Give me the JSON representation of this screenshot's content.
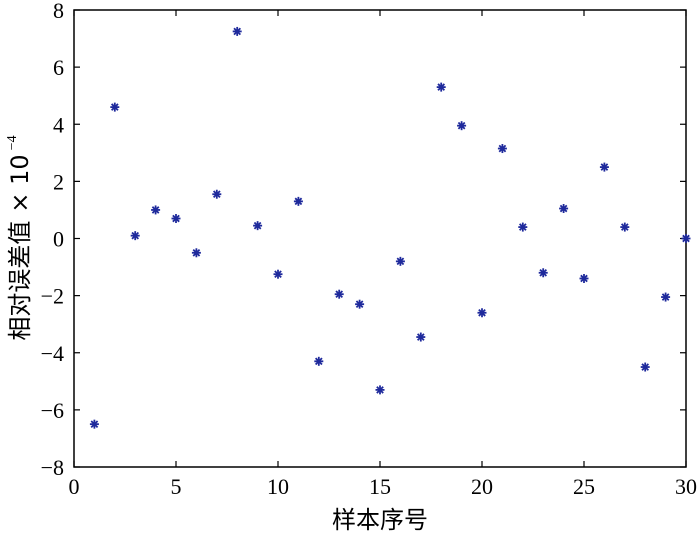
{
  "chart_data": {
    "type": "scatter",
    "title": "",
    "xlabel": "样本序号",
    "ylabel_main": "相对误差值",
    "ylabel_factor": "× 10",
    "ylabel_exponent": "−4",
    "xlim": [
      0,
      30
    ],
    "ylim": [
      -8,
      8
    ],
    "xticks": [
      0,
      5,
      10,
      15,
      20,
      25,
      30
    ],
    "yticks": [
      -8,
      -6,
      -4,
      -2,
      0,
      2,
      4,
      6,
      8
    ],
    "grid": false,
    "marker": "*",
    "marker_color": "#1f2a9c",
    "x": [
      1,
      2,
      3,
      4,
      5,
      6,
      7,
      8,
      9,
      10,
      11,
      12,
      13,
      14,
      15,
      16,
      17,
      18,
      19,
      20,
      21,
      22,
      23,
      24,
      25,
      26,
      27,
      28,
      29,
      30
    ],
    "y": [
      -6.5,
      4.6,
      0.1,
      1.0,
      0.7,
      -0.5,
      1.55,
      7.25,
      0.45,
      -1.25,
      1.3,
      -4.3,
      -1.95,
      -2.3,
      -5.3,
      -0.8,
      -3.45,
      5.3,
      3.95,
      -2.6,
      3.15,
      0.4,
      -1.2,
      1.05,
      -1.4,
      2.5,
      0.4,
      -4.5,
      -2.05,
      0.0
    ]
  }
}
